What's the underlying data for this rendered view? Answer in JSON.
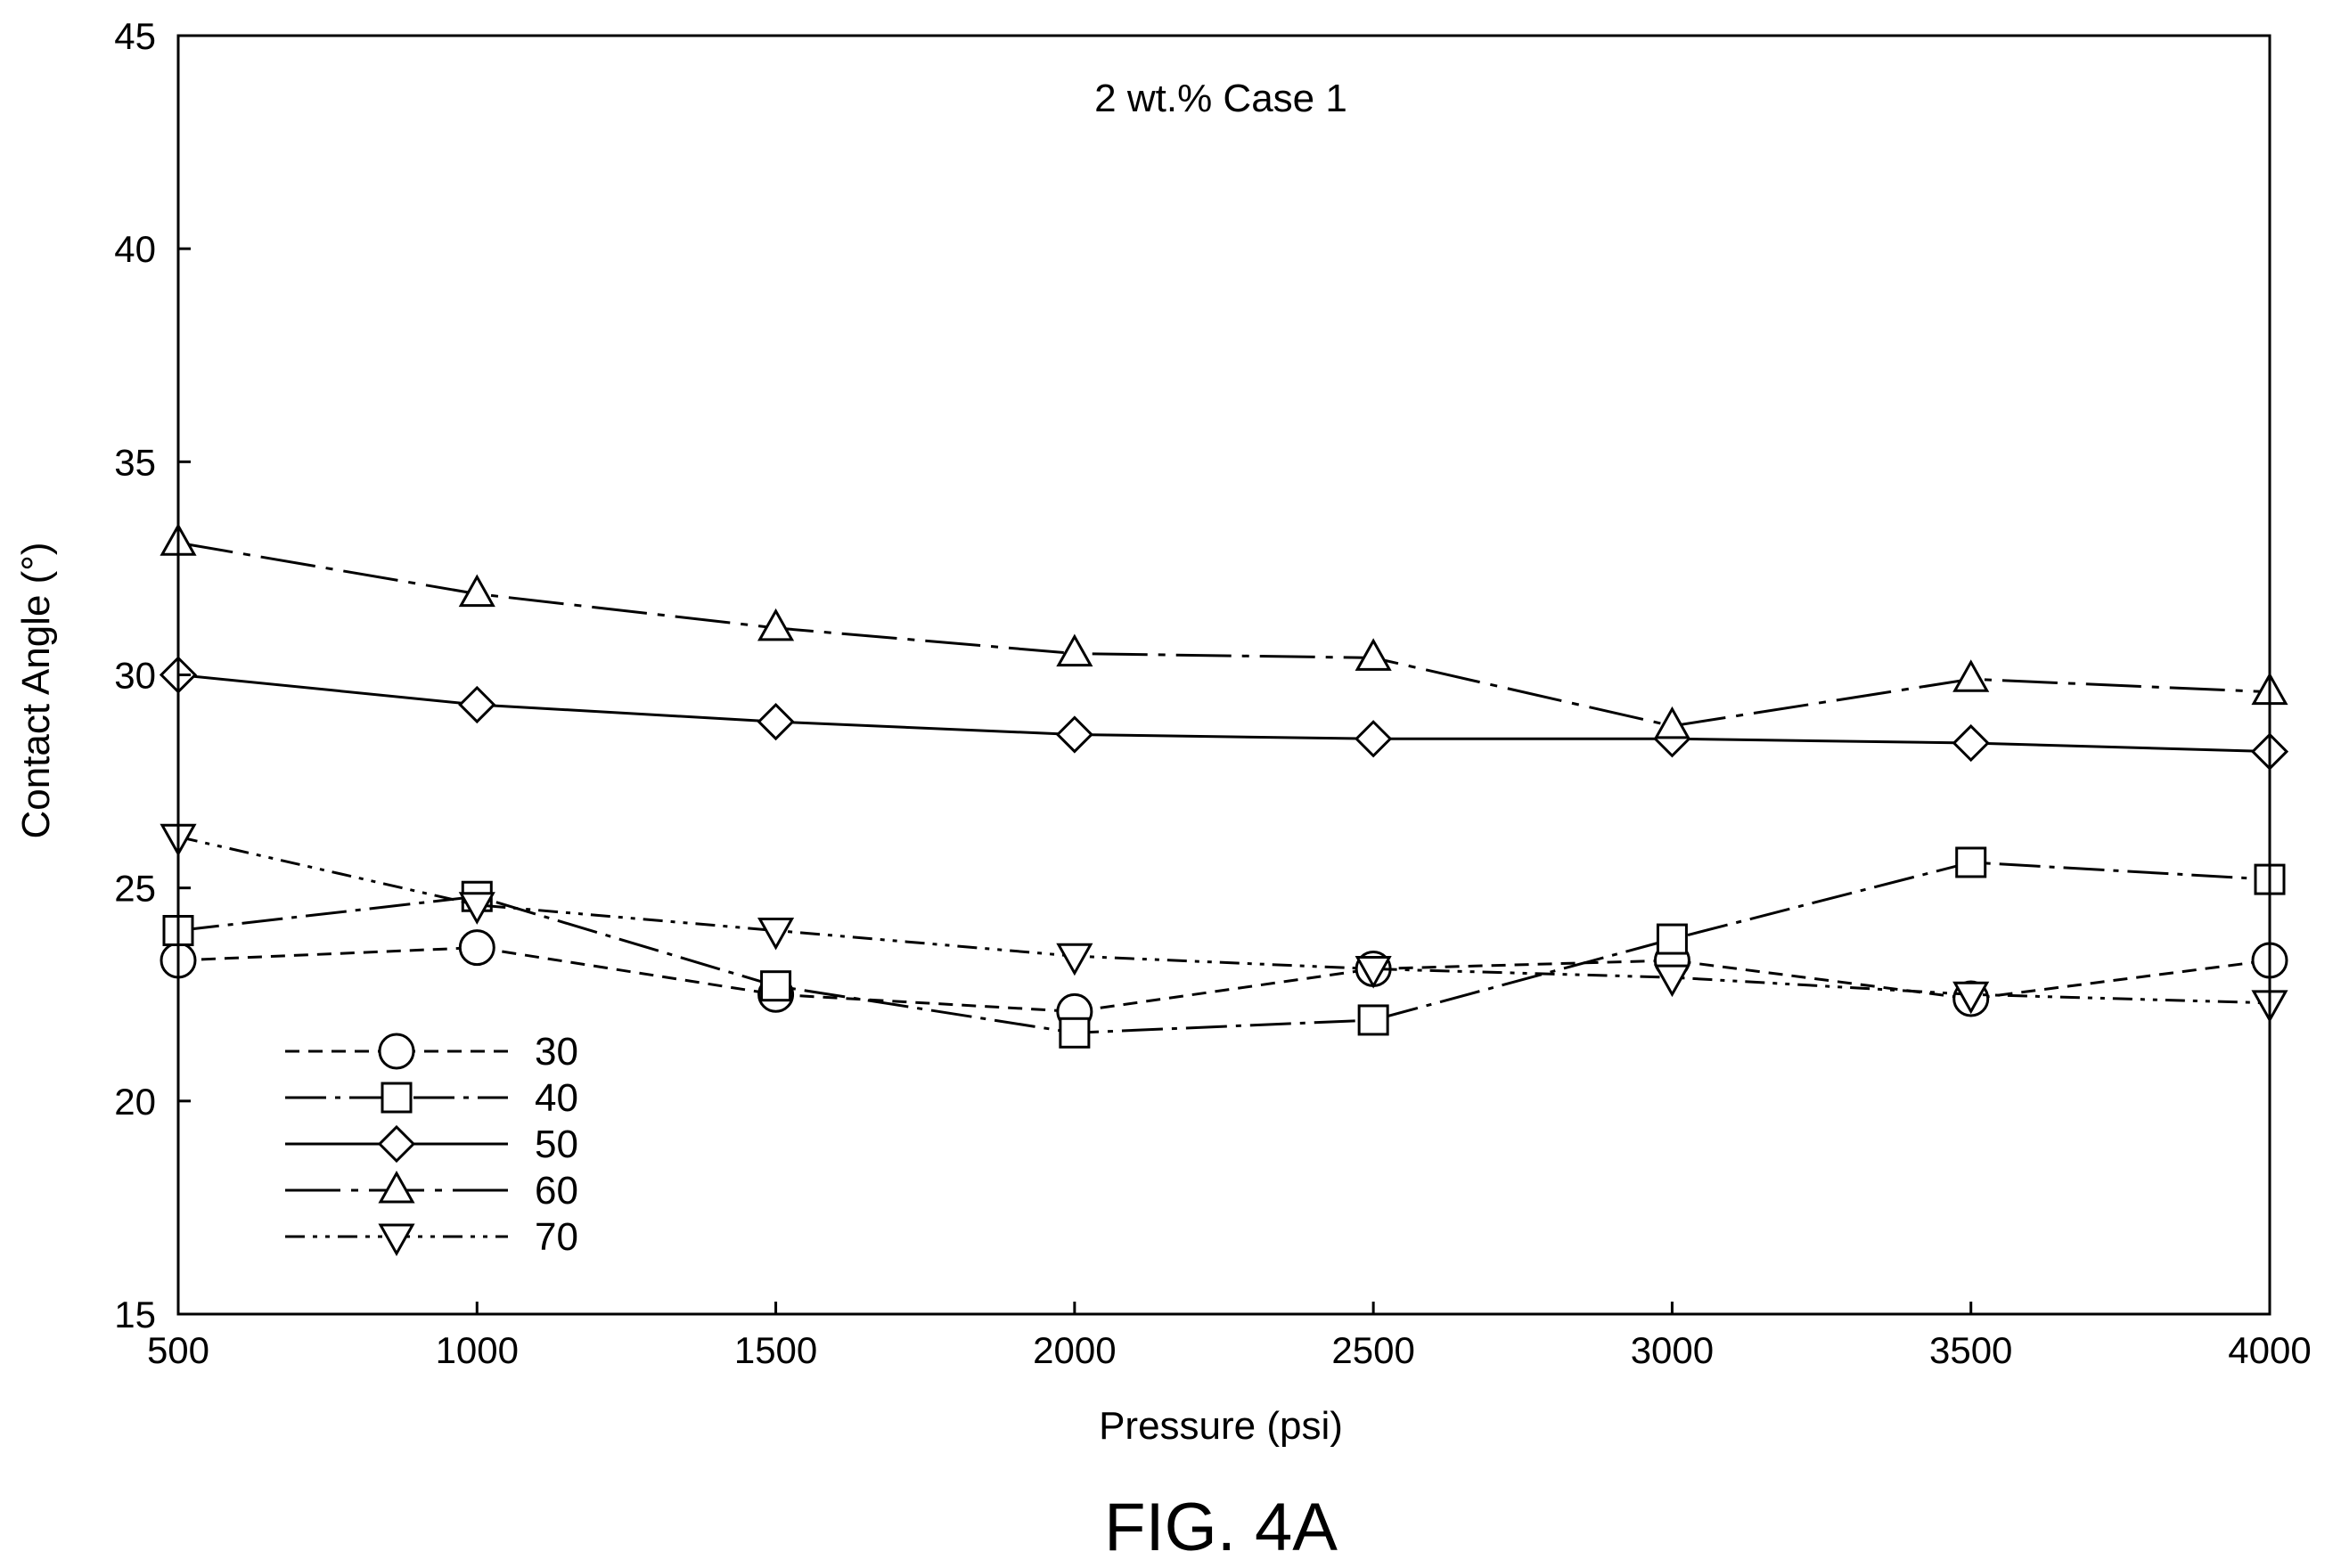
{
  "chart_data": {
    "type": "line",
    "annotation": "2 wt.% Case 1",
    "figure_label": "FIG. 4A",
    "xlabel": "Pressure (psi)",
    "ylabel": "Contact Angle (°)",
    "xlim": [
      500,
      4000
    ],
    "ylim": [
      15,
      45
    ],
    "x_ticks": [
      500,
      1000,
      1500,
      2000,
      2500,
      3000,
      3500,
      4000
    ],
    "y_ticks": [
      15,
      20,
      25,
      30,
      35,
      40,
      45
    ],
    "grid": false,
    "legend_position": "bottom-left",
    "x": [
      500,
      1000,
      1500,
      2000,
      2500,
      3000,
      3500,
      4000
    ],
    "series": [
      {
        "name": "30",
        "marker": "circle",
        "dash": "dashed",
        "values": [
          23.3,
          23.6,
          22.5,
          22.1,
          23.1,
          23.3,
          22.4,
          23.3
        ]
      },
      {
        "name": "40",
        "marker": "square",
        "dash": "dash-dot",
        "values": [
          24.0,
          24.8,
          22.7,
          21.6,
          21.9,
          23.8,
          25.6,
          25.2
        ]
      },
      {
        "name": "50",
        "marker": "diamond",
        "dash": "solid",
        "values": [
          30.0,
          29.3,
          28.9,
          28.6,
          28.5,
          28.5,
          28.4,
          28.2
        ]
      },
      {
        "name": "60",
        "marker": "triangle-up",
        "dash": "long-dash-dot",
        "values": [
          33.1,
          31.9,
          31.1,
          30.5,
          30.4,
          28.8,
          29.9,
          29.6
        ]
      },
      {
        "name": "70",
        "marker": "triangle-down",
        "dash": "dash-dot-dot",
        "values": [
          26.2,
          24.6,
          24.0,
          23.4,
          23.1,
          22.9,
          22.5,
          22.3
        ]
      }
    ]
  }
}
